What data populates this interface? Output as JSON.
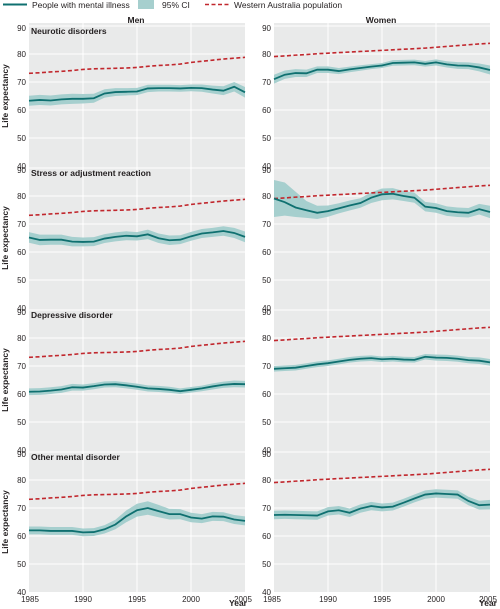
{
  "legend": {
    "series_line_label": "People with mental illness",
    "ci_label": "95% CI",
    "population_label": "Western Australia population"
  },
  "columns": [
    "Men",
    "Women"
  ],
  "rows": [
    "Neurotic disorders",
    "Stress or adjustment reaction",
    "Depressive disorder",
    "Other mental disorder"
  ],
  "y_axis_label": "Life expectancy",
  "x_axis_label": "Year",
  "colors": {
    "mental": "#0f7070",
    "ci": "#a6cfce",
    "population": "#c1272d",
    "panel_bg": "#e9eaea",
    "grid": "#ffffff"
  },
  "chart_data": {
    "type": "line",
    "x": [
      1985,
      1986,
      1987,
      1988,
      1989,
      1990,
      1991,
      1992,
      1993,
      1994,
      1995,
      1996,
      1997,
      1998,
      1999,
      2000,
      2001,
      2002,
      2003,
      2004,
      2005
    ],
    "xlim": [
      1985,
      2005
    ],
    "ylim": [
      40,
      90
    ],
    "x_ticks": [
      1985,
      1990,
      1995,
      2000,
      2005
    ],
    "y_ticks": [
      40,
      50,
      60,
      70,
      80,
      90
    ],
    "xlabel": "Year",
    "ylabel": "Life expectancy",
    "legend_position": "top",
    "grid": true,
    "series": [
      {
        "name": "Western Australia population",
        "style": "dashed",
        "values": [
          [
            73.1,
            73.3,
            73.6,
            73.8,
            74.1,
            74.5,
            74.7,
            74.8,
            74.9,
            75.0,
            75.2,
            75.6,
            75.9,
            76.1,
            76.4,
            77.0,
            77.4,
            77.8,
            78.2,
            78.5,
            78.8
          ],
          [
            79.1,
            79.3,
            79.6,
            79.8,
            80.1,
            80.3,
            80.5,
            80.7,
            80.9,
            81.1,
            81.3,
            81.5,
            81.7,
            81.9,
            82.1,
            82.4,
            82.7,
            83.0,
            83.3,
            83.6,
            83.8
          ]
        ]
      }
    ],
    "panels": [
      {
        "row": "Neurotic disorders",
        "sex": "Men",
        "mental": [
          63.3,
          63.6,
          63.4,
          63.8,
          64.0,
          64.0,
          64.2,
          65.9,
          66.4,
          66.5,
          66.6,
          67.7,
          67.8,
          67.8,
          67.7,
          67.9,
          67.8,
          67.3,
          66.9,
          68.3,
          66.3
        ],
        "ci_lower": [
          61.5,
          61.8,
          61.6,
          62.0,
          62.2,
          62.3,
          62.6,
          64.4,
          65.0,
          65.2,
          65.3,
          66.4,
          66.6,
          66.6,
          66.5,
          66.7,
          66.5,
          65.9,
          65.3,
          66.6,
          64.4
        ],
        "ci_upper": [
          65.1,
          65.4,
          65.2,
          65.6,
          65.8,
          65.7,
          65.8,
          67.4,
          67.8,
          67.8,
          67.9,
          69.0,
          69.0,
          69.0,
          68.9,
          69.1,
          69.1,
          68.7,
          68.5,
          70.0,
          68.2
        ]
      },
      {
        "row": "Neurotic disorders",
        "sex": "Women",
        "mental": [
          71.0,
          72.6,
          73.2,
          73.1,
          74.4,
          74.4,
          73.9,
          74.5,
          75.0,
          75.5,
          75.9,
          76.8,
          76.9,
          77.0,
          76.5,
          77.0,
          76.3,
          75.9,
          75.8,
          75.2,
          74.3
        ],
        "ci_lower": [
          69.4,
          71.1,
          71.8,
          71.8,
          73.2,
          73.2,
          72.8,
          73.5,
          74.0,
          74.6,
          75.0,
          75.8,
          75.9,
          76.0,
          75.5,
          75.9,
          75.2,
          74.7,
          74.6,
          73.8,
          72.7
        ],
        "ci_upper": [
          72.6,
          74.1,
          74.6,
          74.4,
          75.6,
          75.6,
          75.0,
          75.5,
          76.0,
          76.4,
          76.8,
          77.8,
          77.9,
          78.0,
          77.5,
          78.1,
          77.4,
          77.1,
          77.0,
          76.6,
          75.9
        ]
      },
      {
        "row": "Stress or adjustment reaction",
        "sex": "Men",
        "mental": [
          65.2,
          64.3,
          64.4,
          64.4,
          63.7,
          63.6,
          63.7,
          64.8,
          65.4,
          65.8,
          65.6,
          66.3,
          64.9,
          64.2,
          64.4,
          65.6,
          66.6,
          67.0,
          67.5,
          66.8,
          65.4
        ],
        "ci_lower": [
          63.3,
          62.4,
          62.6,
          62.6,
          62.0,
          62.0,
          62.1,
          63.2,
          63.8,
          64.2,
          64.1,
          64.6,
          63.2,
          62.5,
          62.8,
          64.0,
          65.0,
          65.4,
          65.8,
          65.0,
          63.5
        ],
        "ci_upper": [
          67.1,
          66.2,
          66.2,
          66.2,
          65.4,
          65.2,
          65.3,
          66.4,
          67.0,
          67.4,
          67.1,
          68.0,
          66.6,
          65.9,
          66.0,
          67.2,
          68.2,
          68.6,
          69.2,
          68.6,
          67.3
        ]
      },
      {
        "row": "Stress or adjustment reaction",
        "sex": "Women",
        "mental": [
          79.1,
          77.8,
          75.9,
          74.9,
          74.0,
          74.6,
          75.6,
          76.6,
          77.5,
          79.4,
          80.6,
          80.8,
          80.0,
          79.4,
          76.2,
          75.7,
          74.6,
          74.2,
          74.0,
          75.3,
          74.3
        ],
        "ci_lower": [
          72.5,
          73.0,
          72.5,
          72.2,
          71.8,
          72.6,
          73.8,
          74.8,
          75.8,
          77.5,
          78.5,
          78.8,
          78.2,
          77.6,
          74.5,
          74.0,
          72.9,
          72.5,
          72.3,
          73.4,
          72.1
        ],
        "ci_upper": [
          85.7,
          84.8,
          81.5,
          78.2,
          76.5,
          76.6,
          77.4,
          78.4,
          79.2,
          81.3,
          82.7,
          82.8,
          81.8,
          81.2,
          77.9,
          77.4,
          76.3,
          75.9,
          75.7,
          77.2,
          76.5
        ]
      },
      {
        "row": "Depressive disorder",
        "sex": "Men",
        "mental": [
          60.8,
          60.9,
          61.2,
          61.6,
          62.4,
          62.3,
          62.8,
          63.4,
          63.5,
          63.1,
          62.6,
          62.0,
          61.8,
          61.5,
          61.0,
          61.5,
          62.0,
          62.7,
          63.3,
          63.6,
          63.5
        ],
        "ci_lower": [
          59.6,
          59.7,
          60.0,
          60.4,
          61.2,
          61.2,
          61.7,
          62.3,
          62.4,
          62.0,
          61.5,
          60.9,
          60.7,
          60.4,
          60.0,
          60.5,
          61.0,
          61.6,
          62.2,
          62.4,
          62.3
        ],
        "ci_upper": [
          62.0,
          62.1,
          62.4,
          62.8,
          63.6,
          63.4,
          63.9,
          64.5,
          64.6,
          64.2,
          63.7,
          63.1,
          62.9,
          62.6,
          62.0,
          62.5,
          63.0,
          63.8,
          64.4,
          64.8,
          64.7
        ]
      },
      {
        "row": "Depressive disorder",
        "sex": "Women",
        "mental": [
          69.0,
          69.2,
          69.4,
          70.0,
          70.6,
          71.0,
          71.6,
          72.2,
          72.6,
          72.8,
          72.4,
          72.6,
          72.3,
          72.2,
          73.3,
          73.0,
          72.9,
          72.6,
          72.1,
          71.9,
          71.3
        ],
        "ci_lower": [
          68.0,
          68.2,
          68.4,
          69.0,
          69.6,
          70.0,
          70.6,
          71.2,
          71.6,
          71.8,
          71.4,
          71.6,
          71.3,
          71.2,
          72.3,
          71.9,
          71.8,
          71.5,
          71.0,
          70.7,
          70.1
        ],
        "ci_upper": [
          70.0,
          70.2,
          70.4,
          71.0,
          71.6,
          72.0,
          72.6,
          73.2,
          73.6,
          73.8,
          73.4,
          73.6,
          73.3,
          73.2,
          74.3,
          74.1,
          74.0,
          73.7,
          73.2,
          73.1,
          72.5
        ]
      },
      {
        "row": "Other mental disorder",
        "sex": "Men",
        "mental": [
          62.0,
          62.0,
          61.8,
          61.8,
          61.8,
          61.3,
          61.4,
          62.4,
          64.1,
          67.0,
          69.2,
          70.0,
          68.9,
          67.8,
          67.8,
          66.6,
          66.2,
          67.0,
          66.9,
          65.9,
          65.4
        ],
        "ci_lower": [
          60.6,
          60.6,
          60.4,
          60.4,
          60.4,
          59.9,
          60.0,
          60.9,
          62.4,
          64.9,
          66.9,
          67.6,
          66.7,
          65.9,
          66.0,
          64.9,
          64.6,
          65.4,
          65.3,
          64.3,
          63.8
        ],
        "ci_upper": [
          63.4,
          63.4,
          63.2,
          63.2,
          63.2,
          62.7,
          62.8,
          63.9,
          65.8,
          69.1,
          71.5,
          72.4,
          71.1,
          69.7,
          69.6,
          68.3,
          67.8,
          68.6,
          68.5,
          67.5,
          67.0
        ]
      },
      {
        "row": "Other mental disorder",
        "sex": "Women",
        "mental": [
          67.5,
          67.6,
          67.5,
          67.4,
          67.3,
          68.8,
          69.2,
          68.3,
          69.8,
          70.7,
          70.2,
          70.5,
          71.9,
          73.4,
          74.8,
          75.2,
          75.0,
          74.8,
          72.5,
          71.0,
          71.2
        ],
        "ci_lower": [
          66.0,
          66.1,
          66.0,
          65.9,
          65.8,
          67.3,
          67.7,
          66.8,
          68.3,
          69.2,
          68.8,
          69.1,
          70.5,
          72.0,
          73.3,
          73.7,
          73.5,
          73.3,
          71.0,
          69.4,
          69.5
        ],
        "ci_upper": [
          69.0,
          69.1,
          69.0,
          68.9,
          68.8,
          70.3,
          70.7,
          69.8,
          71.3,
          72.2,
          71.6,
          71.9,
          73.3,
          74.8,
          76.3,
          76.7,
          76.5,
          76.3,
          74.0,
          72.6,
          72.9
        ]
      }
    ]
  }
}
